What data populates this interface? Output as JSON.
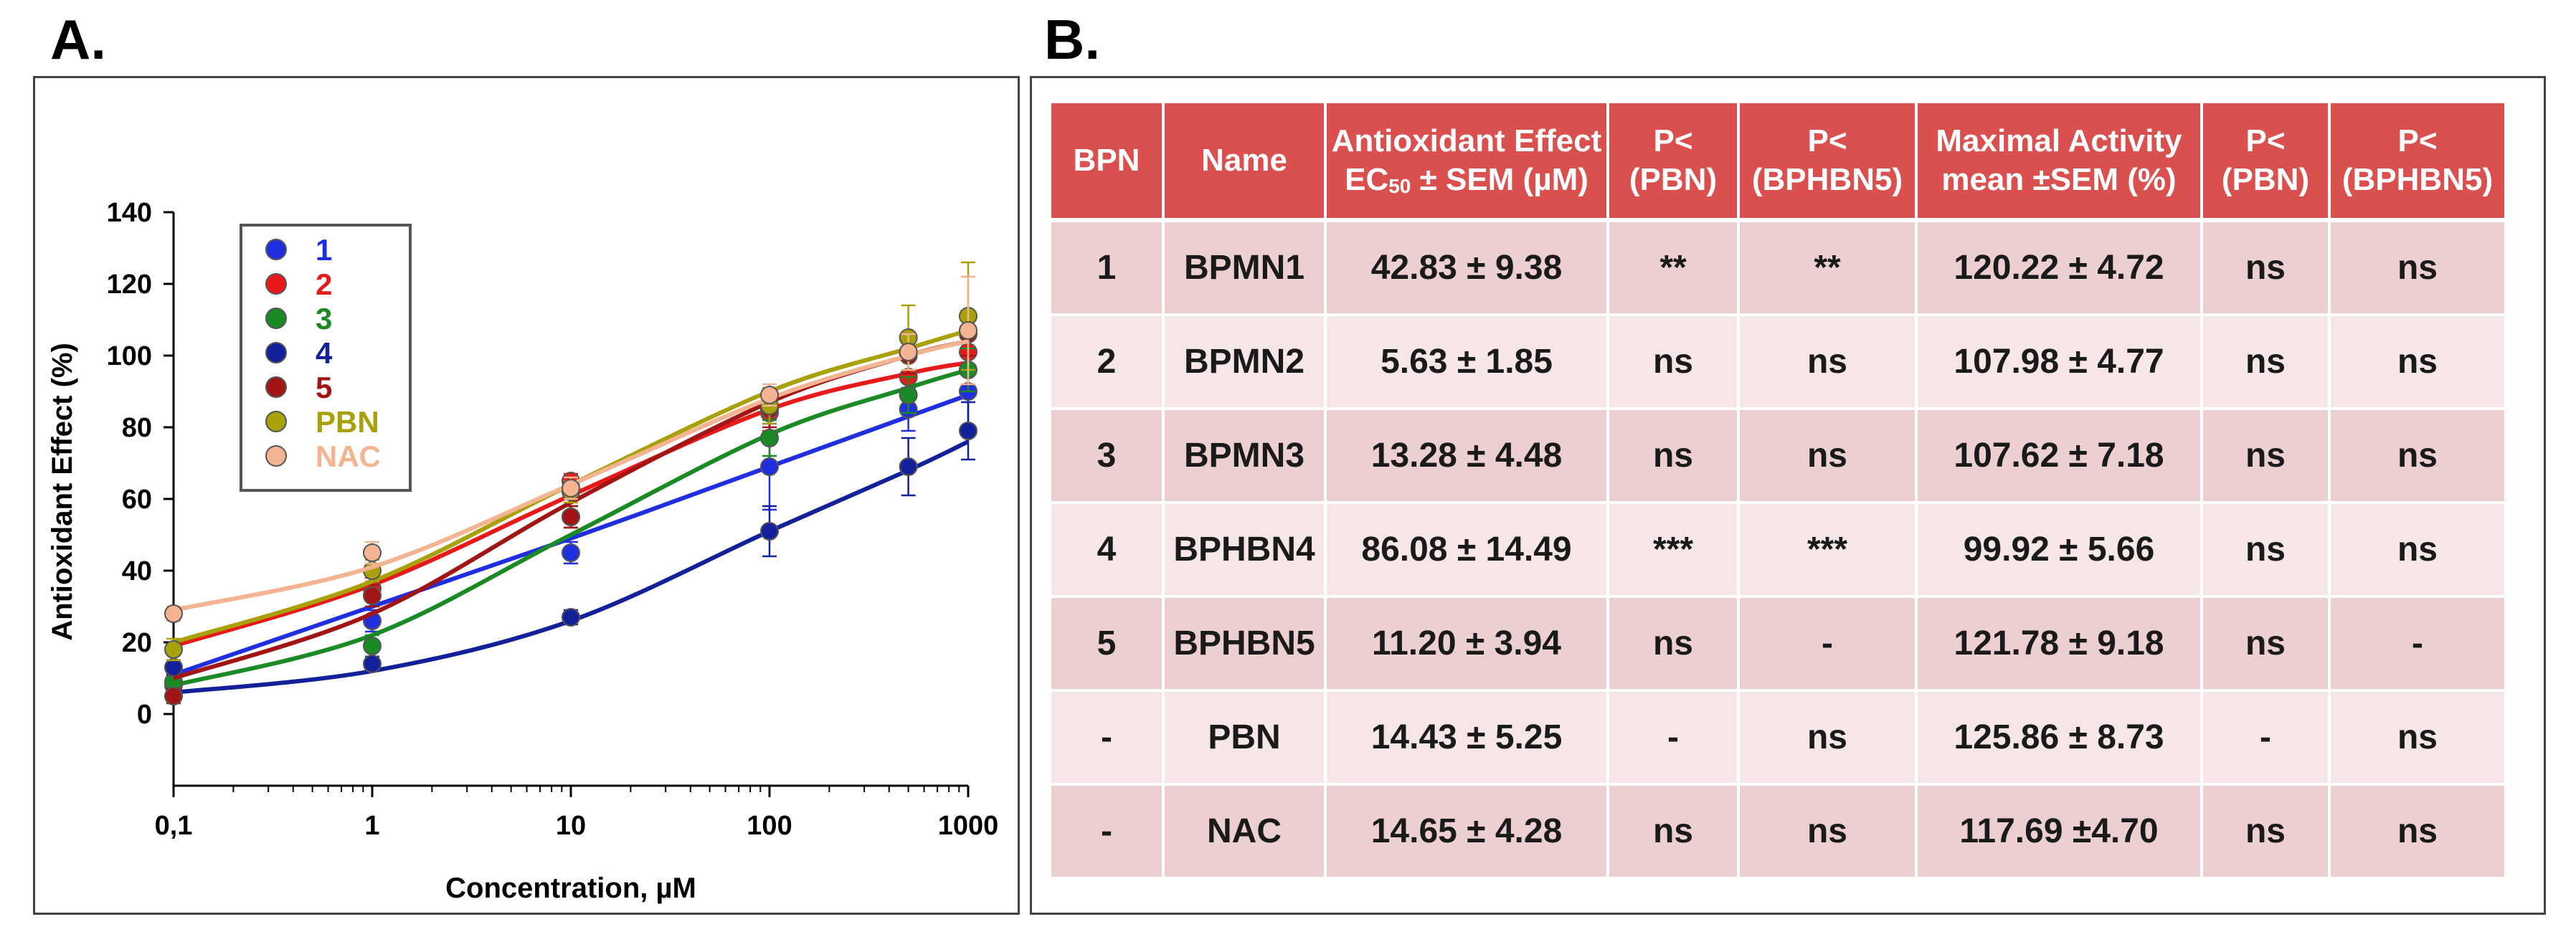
{
  "panel_a_label": "A.",
  "panel_b_label": "B.",
  "chart_data": {
    "type": "line",
    "xscale": "log",
    "xlabel": "Concentration, µM",
    "ylabel": "Antioxidant Effect (%)",
    "xticks": [
      0.1,
      1,
      10,
      100,
      1000
    ],
    "xtick_labels": [
      "0,1",
      "1",
      "10",
      "100",
      "1000"
    ],
    "yticks": [
      0,
      20,
      40,
      60,
      80,
      100,
      120,
      140
    ],
    "ylim": [
      -20,
      140
    ],
    "xlim": [
      0.1,
      1000
    ],
    "legend_position": "top-left",
    "x": [
      0.1,
      1,
      10,
      100,
      500,
      1000
    ],
    "series": [
      {
        "name": "1",
        "color": "#1f2fe0",
        "values": [
          13,
          26,
          45,
          69,
          85,
          90
        ],
        "err": [
          2,
          3,
          3,
          12,
          6,
          10
        ],
        "curve": [
          11,
          30,
          49,
          69,
          83,
          89
        ]
      },
      {
        "name": "2",
        "color": "#e81919",
        "values": [
          8,
          35,
          65,
          84,
          94,
          101
        ],
        "err": [
          2,
          3,
          2,
          5,
          5,
          6
        ],
        "curve": [
          19,
          36,
          61,
          85,
          95,
          98
        ]
      },
      {
        "name": "3",
        "color": "#1a8a24",
        "values": [
          9,
          19,
          55,
          77,
          89,
          96
        ],
        "err": [
          2,
          3,
          3,
          5,
          5,
          6
        ],
        "curve": [
          8,
          22,
          50,
          78,
          91,
          96
        ]
      },
      {
        "name": "4",
        "color": "#12209a",
        "values": [
          13,
          14,
          27,
          51,
          69,
          79
        ],
        "err": [
          2,
          2,
          2,
          7,
          8,
          8
        ],
        "curve": [
          6,
          12,
          26,
          51,
          68,
          76
        ]
      },
      {
        "name": "5",
        "color": "#a31414",
        "values": [
          5,
          33,
          55,
          85,
          100,
          106
        ],
        "err": [
          2,
          3,
          3,
          5,
          5,
          6
        ],
        "curve": [
          10,
          28,
          59,
          87,
          100,
          104
        ]
      },
      {
        "name": "PBN",
        "color": "#a8a10a",
        "values": [
          18,
          40,
          62,
          86,
          105,
          111
        ],
        "err": [
          3,
          3,
          3,
          5,
          9,
          15
        ],
        "curve": [
          20,
          37,
          64,
          90,
          102,
          107
        ]
      },
      {
        "name": "NAC",
        "color": "#f4b391",
        "values": [
          28,
          45,
          63,
          89,
          101,
          107
        ],
        "err": [
          2,
          3,
          3,
          3,
          5,
          15
        ],
        "curve": [
          29,
          41,
          64,
          88,
          100,
          104
        ]
      }
    ]
  },
  "table": {
    "headers": [
      {
        "line1": "BPN",
        "line2": ""
      },
      {
        "line1": "Name",
        "line2": ""
      },
      {
        "line1": "Antioxidant Effect",
        "line2_pre": "EC",
        "line2_sub": "50",
        "line2_post": " ± SEM (µM)"
      },
      {
        "line1": "P<",
        "line2": "(PBN)"
      },
      {
        "line1": "P<",
        "line2": "(BPHBN5)"
      },
      {
        "line1": "Maximal Activity",
        "line2": "mean ±SEM (%)"
      },
      {
        "line1": "P<",
        "line2": "(PBN)"
      },
      {
        "line1": "P<",
        "line2": "(BPHBN5)"
      }
    ],
    "rows": [
      [
        "1",
        "BPMN1",
        "42.83 ± 9.38",
        "**",
        "**",
        "120.22 ± 4.72",
        "ns",
        "ns"
      ],
      [
        "2",
        "BPMN2",
        "5.63 ± 1.85",
        "ns",
        "ns",
        "107.98 ± 4.77",
        "ns",
        "ns"
      ],
      [
        "3",
        "BPMN3",
        "13.28 ± 4.48",
        "ns",
        "ns",
        "107.62 ± 7.18",
        "ns",
        "ns"
      ],
      [
        "4",
        "BPHBN4",
        "86.08 ± 14.49",
        "***",
        "***",
        "99.92 ± 5.66",
        "ns",
        "ns"
      ],
      [
        "5",
        "BPHBN5",
        "11.20 ± 3.94",
        "ns",
        "-",
        "121.78 ± 9.18",
        "ns",
        "-"
      ],
      [
        "-",
        "PBN",
        "14.43 ± 5.25",
        "-",
        "ns",
        "125.86 ± 8.73",
        "-",
        "ns"
      ],
      [
        "-",
        "NAC",
        "14.65 ± 4.28",
        "ns",
        "ns",
        "117.69 ±4.70",
        "ns",
        "ns"
      ]
    ]
  }
}
